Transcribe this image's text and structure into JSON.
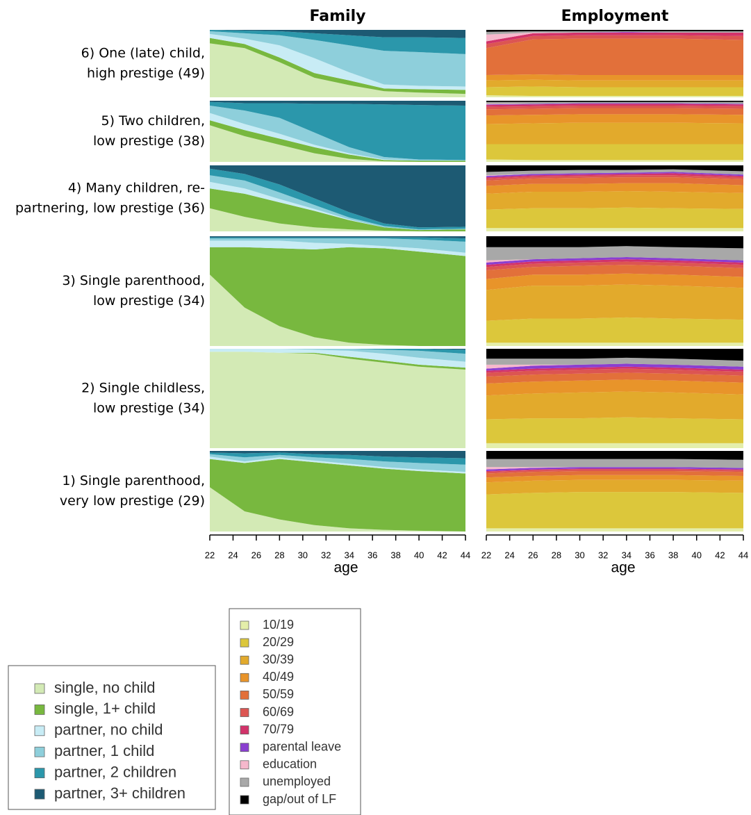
{
  "chart_data": [
    {
      "type": "area",
      "stacked": true,
      "title": "Family",
      "xlabel": "age",
      "xlim": [
        22,
        44
      ],
      "xticks": [
        22,
        24,
        26,
        28,
        30,
        32,
        34,
        36,
        38,
        40,
        42,
        44
      ],
      "ylim": [
        0,
        100
      ],
      "x": [
        22,
        25,
        28,
        31,
        34,
        37,
        40,
        44
      ],
      "legend": [
        {
          "name": "single, no child",
          "color": "#d3eab5"
        },
        {
          "name": "single, 1+ child",
          "color": "#78b83f"
        },
        {
          "name": "partner, no child",
          "color": "#c8ecf5"
        },
        {
          "name": "partner, 1 child",
          "color": "#8ecfdb"
        },
        {
          "name": "partner, 2 children",
          "color": "#2b97ab"
        },
        {
          "name": "partner, 3+ children",
          "color": "#1d5a73"
        }
      ],
      "panels": [
        {
          "label": [
            "6) One (late) child,",
            "high prestige (49)"
          ],
          "values": [
            [
              80,
              73,
              52,
              29,
              18,
              9,
              7,
              5
            ],
            [
              8,
              6,
              7,
              7,
              7,
              4,
              5,
              6
            ],
            [
              6,
              8,
              18,
              22,
              12,
              6,
              5,
              5
            ],
            [
              4,
              8,
              15,
              27,
              40,
              50,
              50,
              48
            ],
            [
              2,
              4,
              6,
              10,
              15,
              20,
              22,
              24
            ],
            [
              0,
              1,
              2,
              5,
              8,
              11,
              11,
              12
            ]
          ]
        },
        {
          "label": [
            "5) Two children,",
            "low prestige (38)"
          ],
          "values": [
            [
              60,
              42,
              28,
              14,
              5,
              1,
              0,
              0
            ],
            [
              8,
              10,
              10,
              10,
              7,
              2,
              2,
              2
            ],
            [
              12,
              10,
              8,
              4,
              2,
              1,
              0,
              0
            ],
            [
              12,
              22,
              26,
              20,
              10,
              4,
              2,
              1
            ],
            [
              6,
              12,
              24,
              47,
              71,
              86,
              89,
              89
            ],
            [
              2,
              4,
              4,
              5,
              5,
              6,
              7,
              8
            ]
          ]
        },
        {
          "label": [
            "4) Many children, re-",
            "partnering, low prestige (36)"
          ],
          "values": [
            [
              35,
              22,
              12,
              6,
              3,
              1,
              0,
              0
            ],
            [
              30,
              35,
              32,
              25,
              14,
              5,
              2,
              3
            ],
            [
              10,
              8,
              5,
              3,
              1,
              0,
              0,
              0
            ],
            [
              10,
              12,
              10,
              6,
              3,
              2,
              1,
              1
            ],
            [
              10,
              10,
              12,
              10,
              8,
              4,
              3,
              3
            ],
            [
              5,
              13,
              29,
              50,
              71,
              88,
              94,
              93
            ]
          ]
        },
        {
          "label": [
            "3) Single parenthood,",
            "low prestige (34)"
          ],
          "values": [
            [
              65,
              35,
              18,
              8,
              3,
              1,
              0,
              0
            ],
            [
              25,
              55,
              71,
              80,
              87,
              88,
              86,
              82
            ],
            [
              6,
              6,
              7,
              6,
              3,
              2,
              3,
              3
            ],
            [
              2,
              2,
              2,
              4,
              5,
              7,
              8,
              10
            ],
            [
              1,
              1,
              1,
              1,
              1,
              1,
              2,
              3
            ],
            [
              1,
              1,
              1,
              1,
              1,
              1,
              1,
              2
            ]
          ]
        },
        {
          "label": [
            "2) Single childless,",
            "low prestige (34)"
          ],
          "values": [
            [
              97,
              97,
              96,
              95,
              90,
              86,
              82,
              79
            ],
            [
              0,
              0,
              0,
              1,
              2,
              2,
              2,
              2
            ],
            [
              3,
              3,
              4,
              3,
              6,
              7,
              7,
              6
            ],
            [
              0,
              0,
              0,
              1,
              2,
              4,
              7,
              8
            ],
            [
              0,
              0,
              0,
              0,
              0,
              1,
              2,
              4
            ],
            [
              0,
              0,
              0,
              0,
              0,
              0,
              0,
              1
            ]
          ]
        },
        {
          "label": [
            "1) Single parenthood,",
            "very low prestige (29)"
          ],
          "values": [
            [
              55,
              25,
              15,
              8,
              4,
              2,
              1,
              0
            ],
            [
              35,
              60,
              75,
              78,
              78,
              76,
              74,
              72
            ],
            [
              3,
              2,
              2,
              2,
              2,
              2,
              2,
              2
            ],
            [
              3,
              5,
              3,
              4,
              6,
              7,
              8,
              9
            ],
            [
              2,
              5,
              3,
              4,
              5,
              6,
              7,
              8
            ],
            [
              2,
              3,
              2,
              4,
              5,
              7,
              8,
              9
            ]
          ]
        }
      ]
    },
    {
      "type": "area",
      "stacked": true,
      "title": "Employment",
      "xlabel": "age",
      "xlim": [
        22,
        44
      ],
      "xticks": [
        22,
        24,
        26,
        28,
        30,
        32,
        34,
        36,
        38,
        40,
        42,
        44
      ],
      "ylim": [
        0,
        100
      ],
      "x": [
        22,
        26,
        30,
        34,
        38,
        44
      ],
      "legend": [
        {
          "name": "10/19",
          "color": "#e4eeaa"
        },
        {
          "name": "20/29",
          "color": "#dcc73b"
        },
        {
          "name": "30/39",
          "color": "#e2aa2c"
        },
        {
          "name": "40/49",
          "color": "#e8942a"
        },
        {
          "name": "50/59",
          "color": "#e2703a"
        },
        {
          "name": "60/69",
          "color": "#dc5552"
        },
        {
          "name": "70/79",
          "color": "#d2336a"
        },
        {
          "name": "parental leave",
          "color": "#8a3fd0"
        },
        {
          "name": "education",
          "color": "#f6b8cc"
        },
        {
          "name": "unemployed",
          "color": "#a8a8a8"
        },
        {
          "name": "gap/out of LF",
          "color": "#000000"
        }
      ],
      "panels": [
        {
          "values": [
            [
              3,
              2,
              2,
              2,
              2,
              2
            ],
            [
              12,
              14,
              13,
              13,
              13,
              13
            ],
            [
              10,
              10,
              10,
              10,
              10,
              10
            ],
            [
              8,
              8,
              8,
              8,
              8,
              8
            ],
            [
              40,
              52,
              54,
              54,
              54,
              52
            ],
            [
              6,
              5,
              5,
              5,
              5,
              6
            ],
            [
              4,
              4,
              4,
              4,
              4,
              5
            ],
            [
              0,
              0,
              0,
              1,
              0,
              0
            ],
            [
              10,
              1,
              0,
              0,
              0,
              0
            ],
            [
              4,
              2,
              2,
              1,
              2,
              2
            ],
            [
              3,
              2,
              2,
              2,
              2,
              2
            ]
          ]
        },
        {
          "values": [
            [
              4,
              3,
              3,
              3,
              3,
              3
            ],
            [
              25,
              26,
              26,
              26,
              26,
              26
            ],
            [
              33,
              34,
              35,
              35,
              35,
              34
            ],
            [
              14,
              14,
              14,
              14,
              14,
              14
            ],
            [
              10,
              10,
              10,
              10,
              10,
              10
            ],
            [
              4,
              4,
              4,
              4,
              4,
              4
            ],
            [
              3,
              3,
              3,
              3,
              3,
              3
            ],
            [
              1,
              1,
              1,
              1,
              1,
              1
            ],
            [
              1,
              0,
              0,
              0,
              0,
              0
            ],
            [
              3,
              3,
              2,
              2,
              2,
              3
            ],
            [
              2,
              2,
              2,
              2,
              2,
              2
            ]
          ]
        },
        {
          "values": [
            [
              5,
              5,
              5,
              5,
              5,
              5
            ],
            [
              28,
              30,
              30,
              31,
              30,
              29
            ],
            [
              24,
              25,
              25,
              25,
              25,
              24
            ],
            [
              12,
              12,
              12,
              12,
              13,
              12
            ],
            [
              8,
              8,
              9,
              9,
              9,
              9
            ],
            [
              3,
              3,
              3,
              3,
              3,
              3
            ],
            [
              2,
              2,
              2,
              2,
              3,
              2
            ],
            [
              2,
              2,
              2,
              2,
              2,
              2
            ],
            [
              1,
              0,
              0,
              0,
              0,
              0
            ],
            [
              5,
              5,
              5,
              4,
              4,
              5
            ],
            [
              10,
              8,
              7,
              7,
              6,
              9
            ]
          ]
        },
        {
          "values": [
            [
              3,
              3,
              3,
              3,
              3,
              3
            ],
            [
              20,
              22,
              22,
              23,
              22,
              21
            ],
            [
              28,
              30,
              30,
              30,
              30,
              29
            ],
            [
              10,
              10,
              10,
              10,
              10,
              10
            ],
            [
              8,
              7,
              8,
              8,
              8,
              8
            ],
            [
              3,
              3,
              3,
              3,
              3,
              3
            ],
            [
              2,
              2,
              2,
              2,
              2,
              2
            ],
            [
              2,
              2,
              2,
              2,
              2,
              2
            ],
            [
              2,
              0,
              0,
              0,
              0,
              0
            ],
            [
              12,
              11,
              10,
              10,
              10,
              11
            ],
            [
              10,
              10,
              10,
              9,
              10,
              11
            ]
          ]
        },
        {
          "values": [
            [
              5,
              5,
              5,
              5,
              5,
              5
            ],
            [
              24,
              25,
              25,
              26,
              25,
              24
            ],
            [
              24,
              25,
              26,
              26,
              26,
              25
            ],
            [
              12,
              12,
              12,
              12,
              12,
              12
            ],
            [
              7,
              7,
              7,
              7,
              7,
              7
            ],
            [
              4,
              4,
              4,
              4,
              4,
              4
            ],
            [
              2,
              2,
              2,
              2,
              2,
              2
            ],
            [
              2,
              3,
              3,
              3,
              3,
              3
            ],
            [
              4,
              1,
              0,
              0,
              0,
              0
            ],
            [
              6,
              6,
              6,
              6,
              6,
              6
            ],
            [
              10,
              10,
              10,
              9,
              10,
              12
            ]
          ]
        },
        {
          "values": [
            [
              4,
              4,
              4,
              4,
              4,
              4
            ],
            [
              42,
              44,
              45,
              45,
              45,
              44
            ],
            [
              15,
              15,
              15,
              15,
              15,
              15
            ],
            [
              6,
              6,
              6,
              6,
              6,
              6
            ],
            [
              5,
              5,
              5,
              5,
              5,
              5
            ],
            [
              2,
              2,
              2,
              2,
              2,
              2
            ],
            [
              1,
              1,
              1,
              1,
              1,
              1
            ],
            [
              2,
              2,
              2,
              2,
              2,
              2
            ],
            [
              3,
              1,
              0,
              0,
              0,
              0
            ],
            [
              10,
              10,
              10,
              10,
              10,
              10
            ],
            [
              10,
              10,
              10,
              10,
              10,
              11
            ]
          ]
        }
      ]
    }
  ]
}
